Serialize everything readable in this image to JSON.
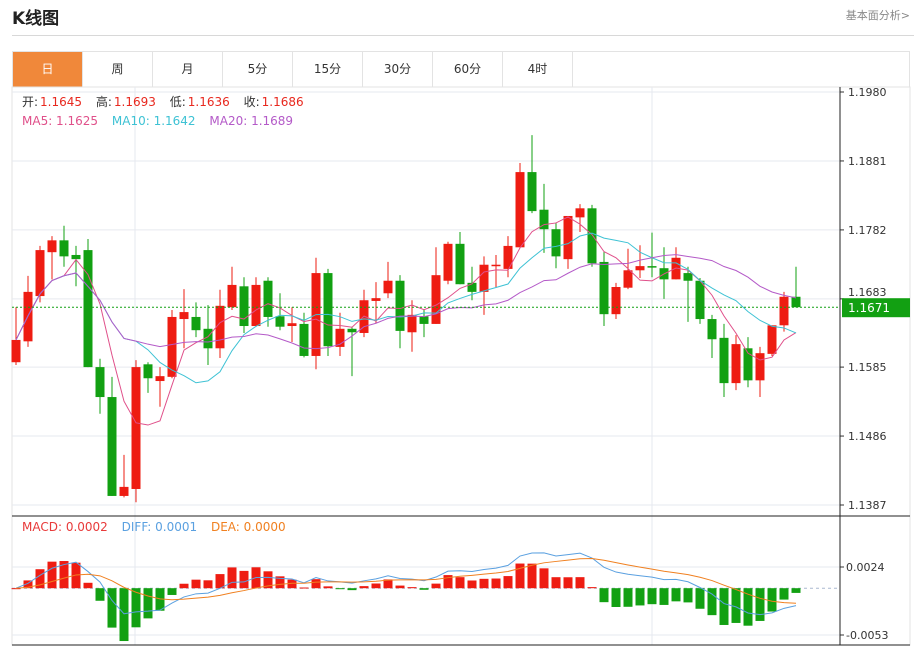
{
  "header": {
    "title": "K线图",
    "link": "基本面分析>"
  },
  "tabs": [
    {
      "label": "日",
      "active": true
    },
    {
      "label": "周"
    },
    {
      "label": "月"
    },
    {
      "label": "5分"
    },
    {
      "label": "15分"
    },
    {
      "label": "30分"
    },
    {
      "label": "60分"
    },
    {
      "label": "4时"
    }
  ],
  "legend": {
    "open_label": "开:",
    "open": "1.1645",
    "high_label": "高:",
    "high": "1.1693",
    "low_label": "低:",
    "low": "1.1636",
    "close_label": "收:",
    "close": "1.1686",
    "ma5": "MA5: 1.1625",
    "ma10": "MA10: 1.1642",
    "ma20": "MA20: 1.1689",
    "macd": "MACD: 0.0002",
    "diff": "DIFF: 0.0001",
    "dea": "DEA: 0.0000"
  },
  "colors": {
    "up": "#ee1c12",
    "down": "#12a012",
    "accent": "#f0883a",
    "ma5": "#e0508a",
    "ma10": "#3ec2d4",
    "ma20": "#b45ac8",
    "diff": "#5aa0e0",
    "dea": "#f08020",
    "macd_label": "#e83a3a"
  },
  "chart_data": [
    {
      "type": "candlestick",
      "current_price": "1.1671",
      "ylim": [
        1.1387,
        1.198
      ],
      "yticks": [
        "1.1980",
        "1.1881",
        "1.1782",
        "1.1683",
        "1.1585",
        "1.1486",
        "1.1387"
      ],
      "grid": true,
      "moving_averages": [
        5,
        10,
        20
      ],
      "open": [
        1.1592,
        1.1622,
        1.1687,
        1.175,
        1.1767,
        1.1746,
        1.1753,
        1.1585,
        1.1542,
        1.14,
        1.141,
        1.1589,
        1.1565,
        1.1571,
        1.1654,
        1.1657,
        1.164,
        1.1612,
        1.1671,
        1.1701,
        1.1644,
        1.1709,
        1.1658,
        1.1644,
        1.1647,
        1.1601,
        1.172,
        1.1614,
        1.164,
        1.1634,
        1.168,
        1.1691,
        1.1709,
        1.1635,
        1.1658,
        1.1647,
        1.1709,
        1.1762,
        1.1706,
        1.1693,
        1.173,
        1.1726,
        1.1757,
        1.1865,
        1.1811,
        1.1783,
        1.174,
        1.18,
        1.1813,
        1.1736,
        1.1661,
        1.1699,
        1.1724,
        1.173,
        1.1727,
        1.1711,
        1.172,
        1.1709,
        1.1654,
        1.1627,
        1.1562,
        1.1612,
        1.1566,
        1.1604,
        1.1645,
        1.1686
      ],
      "high": [
        1.1671,
        1.1716,
        1.1759,
        1.1773,
        1.1788,
        1.1759,
        1.1769,
        1.1597,
        1.1571,
        1.1459,
        1.1595,
        1.1592,
        1.1585,
        1.1667,
        1.1697,
        1.1678,
        1.1674,
        1.1696,
        1.1729,
        1.1714,
        1.1714,
        1.1714,
        1.1691,
        1.1671,
        1.1663,
        1.1742,
        1.1726,
        1.1663,
        1.1643,
        1.1696,
        1.1707,
        1.1736,
        1.1717,
        1.1681,
        1.1668,
        1.1757,
        1.1765,
        1.1779,
        1.1729,
        1.1744,
        1.1746,
        1.1773,
        1.1878,
        1.1918,
        1.1848,
        1.1792,
        1.1802,
        1.1819,
        1.1818,
        1.175,
        1.1706,
        1.1755,
        1.176,
        1.1778,
        1.1757,
        1.1757,
        1.1729,
        1.1713,
        1.166,
        1.1647,
        1.1631,
        1.1628,
        1.1614,
        1.1645,
        1.1693,
        1.1729
      ],
      "low": [
        1.1588,
        1.1614,
        1.1678,
        1.1711,
        1.1729,
        1.1701,
        1.1585,
        1.1518,
        1.14,
        1.1398,
        1.1391,
        1.1548,
        1.1528,
        1.1569,
        1.1612,
        1.1628,
        1.1588,
        1.1598,
        1.1667,
        1.1634,
        1.1643,
        1.1643,
        1.1638,
        1.1621,
        1.1599,
        1.1582,
        1.1601,
        1.1601,
        1.1572,
        1.1628,
        1.1648,
        1.1684,
        1.1612,
        1.1607,
        1.1628,
        1.1647,
        1.1704,
        1.1704,
        1.1681,
        1.166,
        1.17,
        1.1714,
        1.1757,
        1.1806,
        1.1749,
        1.1727,
        1.1726,
        1.1779,
        1.1729,
        1.1644,
        1.1654,
        1.1697,
        1.1713,
        1.1714,
        1.1683,
        1.1711,
        1.165,
        1.1647,
        1.1598,
        1.1542,
        1.1552,
        1.1556,
        1.1542,
        1.1601,
        1.1636,
        1.1671
      ],
      "close": [
        1.1624,
        1.1693,
        1.1753,
        1.1767,
        1.1744,
        1.174,
        1.1585,
        1.1542,
        1.14,
        1.1413,
        1.1585,
        1.1569,
        1.1572,
        1.1657,
        1.1664,
        1.1638,
        1.1612,
        1.1673,
        1.1703,
        1.1644,
        1.1703,
        1.1657,
        1.1643,
        1.1648,
        1.1601,
        1.172,
        1.1615,
        1.164,
        1.1635,
        1.1681,
        1.1684,
        1.1709,
        1.1637,
        1.166,
        1.1647,
        1.1717,
        1.1762,
        1.1704,
        1.1693,
        1.1732,
        1.1732,
        1.1759,
        1.1865,
        1.1809,
        1.1783,
        1.1744,
        1.1802,
        1.1813,
        1.1734,
        1.1661,
        1.17,
        1.1724,
        1.173,
        1.1729,
        1.1711,
        1.1742,
        1.1709,
        1.1654,
        1.1625,
        1.1562,
        1.1618,
        1.1566,
        1.1605,
        1.1645,
        1.1686,
        1.1671
      ]
    },
    {
      "type": "bar",
      "series_names": [
        "MACD",
        "DIFF",
        "DEA"
      ],
      "ylim": [
        -0.0053,
        0.0024
      ],
      "yticks": [
        "0.0024",
        "-0.0053"
      ]
    }
  ]
}
